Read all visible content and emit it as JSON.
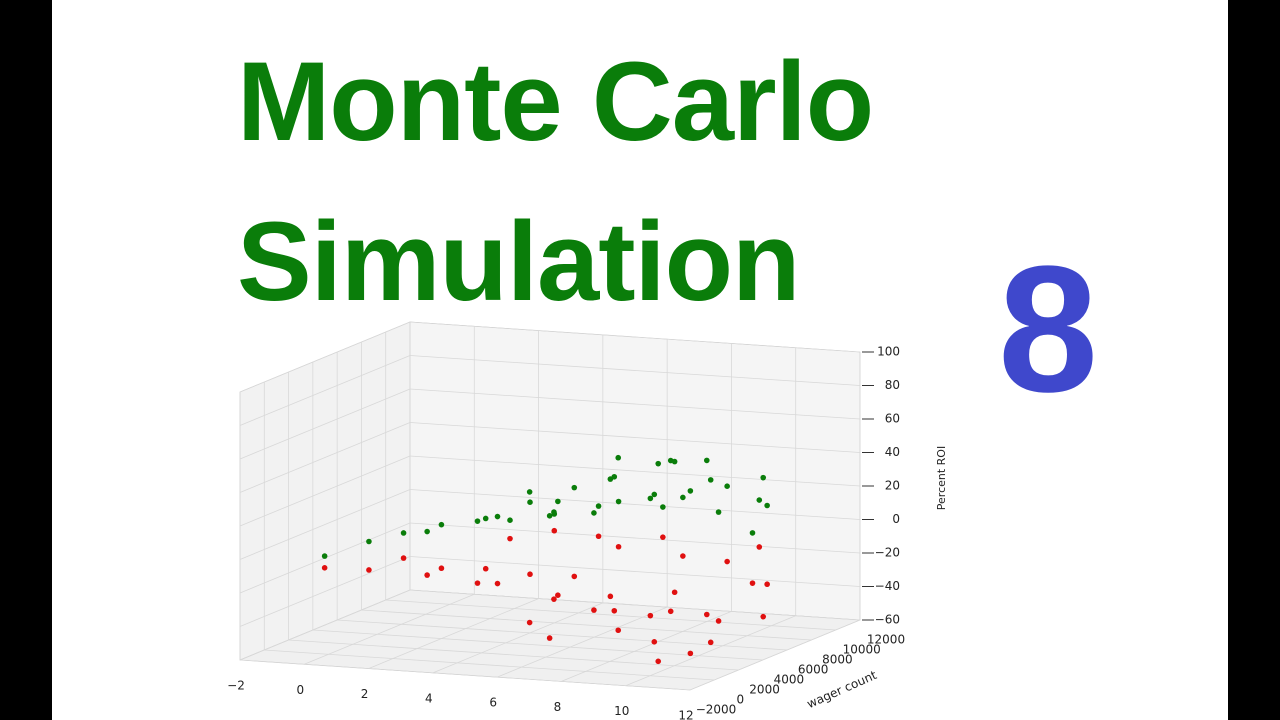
{
  "title_lines": [
    "Monte Carlo",
    "Simulation"
  ],
  "episode": "8",
  "chart_data": {
    "type": "scatter3d",
    "xlim": [
      -2,
      12
    ],
    "xticks": [
      {
        "value": -2,
        "label": "−2"
      },
      0,
      2,
      4,
      6,
      8,
      10,
      12
    ],
    "ylabel": "wager count",
    "ylim": [
      -2000,
      12000
    ],
    "yticks": [
      {
        "value": -2000,
        "label": "−2000"
      },
      0,
      2000,
      4000,
      6000,
      8000,
      10000,
      12000
    ],
    "zlabel": "Percent ROI",
    "zlim": [
      -60,
      100
    ],
    "zticks": [
      {
        "value": -60,
        "label": "−60"
      },
      {
        "value": -40,
        "label": "−40"
      },
      {
        "value": -20,
        "label": "−20"
      },
      0,
      20,
      40,
      60,
      80,
      100
    ],
    "grid": true,
    "series": [
      {
        "color": "#0a7d0a",
        "x": [
          -0.5,
          0.5,
          1.2,
          2,
          2.5,
          3,
          3.5,
          4,
          4.5,
          5,
          5.5,
          6,
          6.5,
          7,
          7.5,
          8,
          8.5,
          9,
          9.5,
          10,
          10.5,
          11,
          6,
          7,
          8,
          9,
          10,
          11,
          4,
          5,
          3,
          9.5,
          7.5,
          8.5,
          5.5,
          6.5,
          10.5,
          11.3
        ],
        "y": [
          1000,
          2000,
          3000,
          4000,
          1500,
          5000,
          3000,
          6000,
          2000,
          7000,
          4000,
          3000,
          6000,
          5000,
          2000,
          7000,
          4000,
          3000,
          6000,
          5000,
          8000,
          3000,
          8000,
          9000,
          8000,
          9000,
          9000,
          7000,
          8000,
          9000,
          7000,
          2000,
          4000,
          6000,
          2000,
          1000,
          2000,
          5000
        ],
        "z": [
          -5,
          2,
          5,
          8,
          12,
          10,
          15,
          18,
          22,
          25,
          20,
          30,
          35,
          40,
          28,
          45,
          32,
          38,
          50,
          42,
          35,
          30,
          15,
          10,
          20,
          25,
          18,
          22,
          5,
          8,
          3,
          60,
          55,
          48,
          38,
          28,
          45,
          12
        ]
      },
      {
        "color": "#e01010",
        "x": [
          -0.5,
          0.5,
          1.2,
          2,
          2.5,
          3,
          3.5,
          4,
          4.5,
          5,
          5.5,
          6,
          6.5,
          7,
          7.5,
          8,
          8.5,
          9,
          9.5,
          10,
          10.5,
          11,
          6,
          7,
          8,
          9,
          10,
          11,
          4,
          5,
          3,
          9.5,
          7.5,
          8.5,
          5.5,
          6.5,
          10.5,
          11.3
        ],
        "y": [
          1000,
          2000,
          3000,
          4000,
          1500,
          5000,
          3000,
          6000,
          2000,
          7000,
          4000,
          3000,
          6000,
          5000,
          2000,
          7000,
          4000,
          3000,
          6000,
          5000,
          8000,
          3000,
          8000,
          9000,
          8000,
          9000,
          9000,
          7000,
          8000,
          9000,
          7000,
          2000,
          4000,
          6000,
          2000,
          1000,
          2000,
          5000
        ],
        "z": [
          -12,
          -15,
          -10,
          -18,
          -14,
          -20,
          -22,
          -25,
          -18,
          -28,
          -32,
          -26,
          -35,
          -40,
          -30,
          -45,
          -38,
          -50,
          -42,
          -55,
          -48,
          -35,
          -12,
          -8,
          -15,
          -20,
          -10,
          -25,
          -5,
          -10,
          -8,
          -58,
          -48,
          -30,
          -40,
          -45,
          -52,
          -18
        ]
      }
    ]
  }
}
